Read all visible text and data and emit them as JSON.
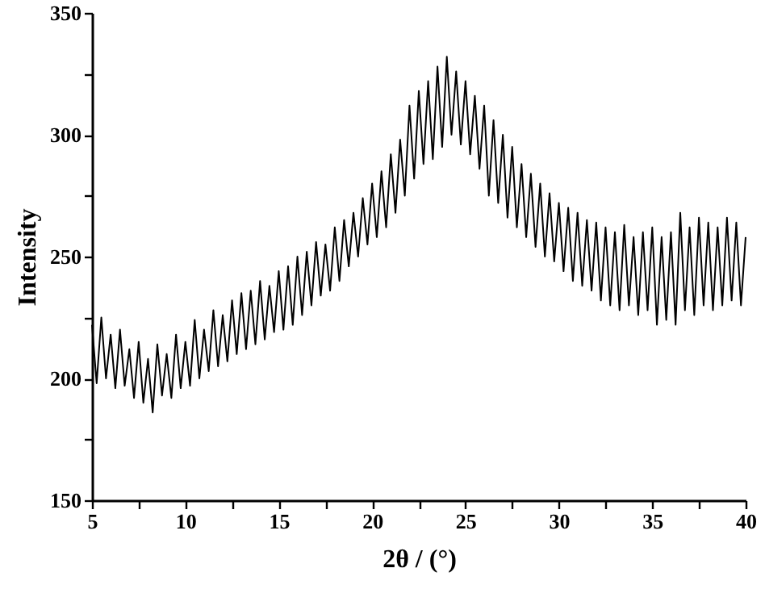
{
  "chart_data": {
    "type": "line",
    "xlabel": "2θ / (°)",
    "ylabel": "Intensity",
    "x": [
      5,
      5.25,
      5.5,
      5.75,
      6,
      6.25,
      6.5,
      6.75,
      7,
      7.25,
      7.5,
      7.75,
      8,
      8.25,
      8.5,
      8.75,
      9,
      9.25,
      9.5,
      9.75,
      10,
      10.25,
      10.5,
      10.75,
      11,
      11.25,
      11.5,
      11.75,
      12,
      12.25,
      12.5,
      12.75,
      13,
      13.25,
      13.5,
      13.75,
      14,
      14.25,
      14.5,
      14.75,
      15,
      15.25,
      15.5,
      15.75,
      16,
      16.25,
      16.5,
      16.75,
      17,
      17.25,
      17.5,
      17.75,
      18,
      18.25,
      18.5,
      18.75,
      19,
      19.25,
      19.5,
      19.75,
      20,
      20.25,
      20.5,
      20.75,
      21,
      21.25,
      21.5,
      21.75,
      22,
      22.25,
      22.5,
      22.75,
      23,
      23.25,
      23.5,
      23.75,
      24,
      24.25,
      24.5,
      24.75,
      25,
      25.25,
      25.5,
      25.75,
      26,
      26.25,
      26.5,
      26.75,
      27,
      27.25,
      27.5,
      27.75,
      28,
      28.25,
      28.5,
      28.75,
      29,
      29.25,
      29.5,
      29.75,
      30,
      30.25,
      30.5,
      30.75,
      31,
      31.25,
      31.5,
      31.75,
      32,
      32.25,
      32.5,
      32.75,
      33,
      33.25,
      33.5,
      33.75,
      34,
      34.25,
      34.5,
      34.75,
      35,
      35.25,
      35.5,
      35.75,
      36,
      36.25,
      36.5,
      36.75,
      37,
      37.25,
      37.5,
      37.75,
      38,
      38.25,
      38.5,
      38.75,
      39,
      39.25,
      39.5,
      39.75,
      40
    ],
    "series": [
      {
        "color": "#000000",
        "values": [
          222,
          198,
          225,
          200,
          218,
          196,
          220,
          197,
          212,
          192,
          215,
          190,
          208,
          186,
          214,
          193,
          210,
          192,
          218,
          196,
          215,
          197,
          224,
          200,
          220,
          203,
          228,
          205,
          226,
          207,
          232,
          210,
          235,
          212,
          236,
          214,
          240,
          216,
          238,
          219,
          244,
          220,
          246,
          222,
          250,
          226,
          252,
          230,
          256,
          234,
          255,
          236,
          262,
          240,
          265,
          246,
          268,
          250,
          274,
          255,
          280,
          258,
          285,
          262,
          292,
          268,
          298,
          275,
          312,
          282,
          318,
          288,
          322,
          290,
          328,
          295,
          332,
          300,
          326,
          296,
          322,
          292,
          316,
          286,
          312,
          275,
          306,
          272,
          300,
          266,
          295,
          262,
          288,
          258,
          284,
          254,
          280,
          250,
          276,
          248,
          272,
          244,
          270,
          240,
          268,
          238,
          265,
          236,
          264,
          232,
          262,
          230,
          260,
          228,
          263,
          230,
          258,
          226,
          260,
          228,
          262,
          222,
          258,
          224,
          260,
          222,
          268,
          228,
          262,
          226,
          266,
          230,
          264,
          228,
          262,
          230,
          266,
          232,
          264,
          230,
          258
        ]
      }
    ],
    "xlim": [
      5,
      40
    ],
    "xticks": [
      5,
      {
        "value": 7.5,
        "label": null
      },
      10,
      {
        "value": 12.5,
        "label": null
      },
      15,
      {
        "value": 17.5,
        "label": null
      },
      20,
      {
        "value": 22.5,
        "label": null
      },
      25,
      {
        "value": 27.5,
        "label": null
      },
      30,
      {
        "value": 32.5,
        "label": null
      },
      35,
      {
        "value": 37.5,
        "label": null
      },
      40
    ],
    "ylim": [
      150,
      350
    ],
    "yticks": [
      150,
      {
        "value": 175,
        "label": null
      },
      200,
      {
        "value": 225,
        "label": null
      },
      250,
      {
        "value": 275,
        "label": null
      },
      300,
      {
        "value": 325,
        "label": null
      },
      350
    ],
    "grid": false,
    "marker": "none",
    "line_style": "solid"
  }
}
